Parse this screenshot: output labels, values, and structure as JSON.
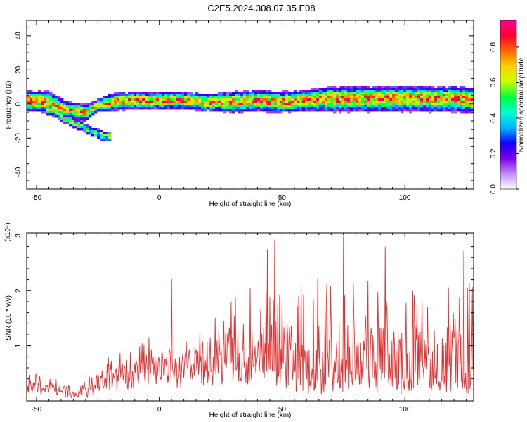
{
  "title": "C2E5.2024.308.07.35.E08",
  "colors": {
    "snr_line": "#e53030",
    "axis": "#000000",
    "background": "#ffffff"
  },
  "chart_data": [
    {
      "type": "heatmap",
      "xlabel": "Height of straight line (km)",
      "ylabel": "Frequency (Hz)",
      "xlim": [
        -54,
        128
      ],
      "ylim": [
        -50,
        49
      ],
      "xticks": [
        "-50",
        "0",
        "50",
        "100"
      ],
      "yticks": [
        "-40",
        "-20",
        "0",
        "20",
        "40"
      ],
      "colorbar": {
        "label": "Normalized spectral amplitude",
        "range": [
          0,
          0.95
        ],
        "ticks": [
          "0.0",
          "0.2",
          "0.4",
          "0.6",
          "0.8"
        ],
        "colormap": [
          "#ffffff",
          "#c58cff",
          "#7a00e6",
          "#1400ff",
          "#00b4ff",
          "#00ffd0",
          "#00ff40",
          "#c8ff00",
          "#ffd200",
          "#ff6a00",
          "#ff0030",
          "#ff0090"
        ]
      },
      "ridge": [
        {
          "x": -54,
          "y": 2,
          "spread": 5
        },
        {
          "x": -45,
          "y": 1,
          "spread": 5
        },
        {
          "x": -38,
          "y": -3,
          "spread": 4
        },
        {
          "x": -30,
          "y": -5,
          "spread": 4
        },
        {
          "x": -25,
          "y": -1,
          "spread": 3
        },
        {
          "x": -20,
          "y": 1,
          "spread": 4
        },
        {
          "x": -10,
          "y": 2,
          "spread": 4
        },
        {
          "x": 0,
          "y": 2,
          "spread": 4
        },
        {
          "x": 10,
          "y": 2,
          "spread": 4
        },
        {
          "x": 20,
          "y": 1,
          "spread": 4
        },
        {
          "x": 30,
          "y": 1,
          "spread": 5
        },
        {
          "x": 40,
          "y": 2,
          "spread": 5
        },
        {
          "x": 50,
          "y": 1,
          "spread": 5
        },
        {
          "x": 60,
          "y": 2,
          "spread": 5
        },
        {
          "x": 70,
          "y": 3,
          "spread": 6
        },
        {
          "x": 80,
          "y": 3,
          "spread": 6
        },
        {
          "x": 90,
          "y": 3,
          "spread": 6
        },
        {
          "x": 100,
          "y": 3,
          "spread": 6
        },
        {
          "x": 110,
          "y": 3,
          "spread": 6
        },
        {
          "x": 120,
          "y": 3,
          "spread": 6
        },
        {
          "x": 128,
          "y": 2,
          "spread": 6
        }
      ],
      "secondary_branch": [
        {
          "x": -44,
          "y": -4
        },
        {
          "x": -38,
          "y": -9
        },
        {
          "x": -32,
          "y": -13
        },
        {
          "x": -28,
          "y": -16
        },
        {
          "x": -22,
          "y": -19
        }
      ]
    },
    {
      "type": "line",
      "xlabel": "Height of straight line (km)",
      "ylabel": "SNR (10 * v/v)",
      "scale_note": "(x10⁴)",
      "xlim": [
        -54,
        128
      ],
      "ylim": [
        0,
        3.05
      ],
      "xticks": [
        "-50",
        "0",
        "50",
        "100"
      ],
      "yticks": [
        "1",
        "2",
        "3"
      ],
      "envelope": [
        {
          "x": -54,
          "base": 0.3,
          "amp": 0.35
        },
        {
          "x": -42,
          "base": 0.25,
          "amp": 0.3
        },
        {
          "x": -35,
          "base": 0.08,
          "amp": 0.15
        },
        {
          "x": -28,
          "base": 0.2,
          "amp": 0.3
        },
        {
          "x": -20,
          "base": 0.5,
          "amp": 0.5
        },
        {
          "x": -10,
          "base": 0.6,
          "amp": 0.6
        },
        {
          "x": 0,
          "base": 0.7,
          "amp": 0.7
        },
        {
          "x": 10,
          "base": 0.8,
          "amp": 0.5
        },
        {
          "x": 20,
          "base": 0.8,
          "amp": 0.7
        },
        {
          "x": 30,
          "base": 0.8,
          "amp": 1.2
        },
        {
          "x": 40,
          "base": 0.6,
          "amp": 1.6
        },
        {
          "x": 50,
          "base": 0.5,
          "amp": 1.8
        },
        {
          "x": 60,
          "base": 0.4,
          "amp": 1.9
        },
        {
          "x": 75,
          "base": 0.4,
          "amp": 2.1
        },
        {
          "x": 90,
          "base": 0.4,
          "amp": 1.9
        },
        {
          "x": 110,
          "base": 0.35,
          "amp": 1.8
        },
        {
          "x": 128,
          "base": 0.35,
          "amp": 1.9
        }
      ],
      "peaks": [
        {
          "x": 5,
          "y": 2.22
        },
        {
          "x": 44,
          "y": 2.75
        },
        {
          "x": 47,
          "y": 2.92
        },
        {
          "x": 75,
          "y": 3.0
        },
        {
          "x": 92,
          "y": 2.8
        },
        {
          "x": 124,
          "y": 2.72
        }
      ]
    }
  ]
}
